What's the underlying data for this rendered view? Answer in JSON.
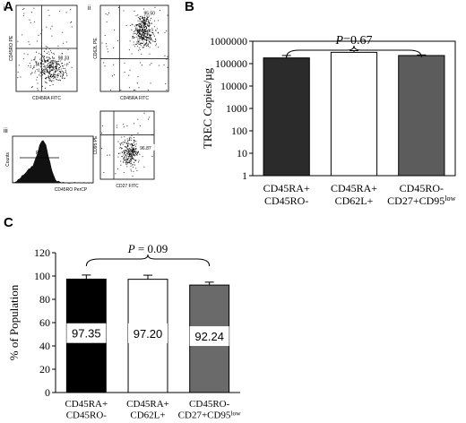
{
  "panels": {
    "a": "A",
    "b": "B",
    "c": "C"
  },
  "flow": {
    "plots": [
      {
        "roman": "i",
        "xlabel": "CD45RA FITC",
        "ylabel": "CD45RO PE",
        "gate_value": "98.33"
      },
      {
        "roman": "ii",
        "xlabel": "CD45RA FITC",
        "ylabel": "CD62L PE",
        "gate_value": "95.50"
      },
      {
        "roman": "",
        "xlabel": "CD27 FITC",
        "ylabel": "CD95 PE",
        "gate_value": "96.87"
      }
    ],
    "histogram": {
      "roman": "iii",
      "xlabel": "CD45RO PerCP",
      "ylabel": "Counts",
      "gate_label": "R2"
    }
  },
  "chart_data": [
    {
      "type": "bar",
      "ylabel": "TREC Copies/µg",
      "yscale": "log",
      "ylim": [
        1,
        1000000
      ],
      "yticks": [
        "1",
        "10",
        "100",
        "1000",
        "10000",
        "100000",
        "1000000"
      ],
      "categories": [
        {
          "line1": "CD45RA+",
          "line2": "CD45RO-",
          "sup": ""
        },
        {
          "line1": "CD45RA+",
          "line2": "CD62L+",
          "sup": ""
        },
        {
          "line1": "CD45RO-",
          "line2": "CD27+CD95",
          "sup": "low"
        }
      ],
      "values": [
        180000,
        320000,
        230000
      ],
      "errors": [
        50000,
        60000,
        15000
      ],
      "colors": [
        "#2b2b2b",
        "#ffffff",
        "#5c5c5c"
      ],
      "annotation": "P=0.67",
      "grid": false,
      "legend": "none"
    },
    {
      "type": "bar",
      "ylabel": "% of Population",
      "ylim": [
        0,
        120
      ],
      "yticks": [
        "0",
        "20",
        "40",
        "60",
        "80",
        "100",
        "120"
      ],
      "categories": [
        {
          "line1": "CD45RA+",
          "line2": "CD45RO-",
          "sup": ""
        },
        {
          "line1": "CD45RA+",
          "line2": "CD62L+",
          "sup": ""
        },
        {
          "line1": "CD45RO-",
          "line2": "CD27+CD95",
          "sup": "low"
        }
      ],
      "values": [
        97.35,
        97.2,
        92.24
      ],
      "data_labels": [
        "97.35",
        "97.20",
        "92.24"
      ],
      "errors": [
        3.5,
        3.5,
        2.5
      ],
      "colors": [
        "#000000",
        "#ffffff",
        "#6a6a6a"
      ],
      "annotation": "P = 0.09",
      "grid": false,
      "legend": "none"
    }
  ]
}
